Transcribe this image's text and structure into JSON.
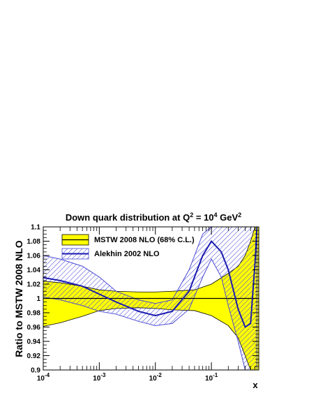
{
  "chart_data": {
    "type": "line",
    "title_main": "Down quark distribution at Q",
    "title_exp1": "2",
    "title_mid": " = 10",
    "title_exp2": "4",
    "title_end": " GeV",
    "title_exp3": "2",
    "xlabel": "x",
    "ylabel": "Ratio to MSTW 2008 NLO",
    "x_scale": "log",
    "xlim": [
      0.0001,
      0.7
    ],
    "ylim": [
      0.9,
      1.1
    ],
    "x_ticks": [
      {
        "base": "10",
        "exp": "-4",
        "value": 0.0001
      },
      {
        "base": "10",
        "exp": "-3",
        "value": 0.001
      },
      {
        "base": "10",
        "exp": "-2",
        "value": 0.01
      },
      {
        "base": "10",
        "exp": "-1",
        "value": 0.1
      }
    ],
    "y_ticks": [
      "0.9",
      "0.92",
      "0.94",
      "0.96",
      "0.98",
      "1",
      "1.02",
      "1.04",
      "1.06",
      "1.08",
      "1.1"
    ],
    "legend_position": "top-left",
    "colors": {
      "mstw_band": "#ffff00",
      "mstw_line": "#000000",
      "alekhin_band": "#4b4bd6",
      "alekhin_line": "#1a1ab0"
    },
    "series": [
      {
        "name": "MSTW 2008 NLO (68% C.L.)",
        "x": [
          0.0001,
          0.0002,
          0.0005,
          0.001,
          0.002,
          0.005,
          0.01,
          0.02,
          0.05,
          0.1,
          0.2,
          0.3,
          0.4,
          0.5,
          0.6,
          0.7
        ],
        "central": [
          1,
          1,
          1,
          1,
          1,
          1,
          1,
          1,
          1,
          1,
          1,
          1,
          1,
          1,
          1,
          1
        ],
        "upper": [
          1.024,
          1.022,
          1.017,
          1.012,
          1.01,
          1.009,
          1.009,
          1.01,
          1.012,
          1.02,
          1.035,
          1.045,
          1.06,
          1.08,
          1.1,
          1.1
        ],
        "lower": [
          0.961,
          0.966,
          0.975,
          0.983,
          0.986,
          0.987,
          0.986,
          0.984,
          0.983,
          0.976,
          0.962,
          0.945,
          0.92,
          0.9,
          0.9,
          0.9
        ]
      },
      {
        "name": "Alekhin 2002 NLO",
        "x": [
          0.0001,
          0.0002,
          0.0005,
          0.001,
          0.002,
          0.005,
          0.01,
          0.02,
          0.04,
          0.07,
          0.1,
          0.15,
          0.2,
          0.3,
          0.4,
          0.5,
          0.6,
          0.65
        ],
        "central": [
          1.029,
          1.025,
          1.017,
          1.006,
          0.995,
          0.982,
          0.976,
          0.982,
          1.01,
          1.06,
          1.08,
          1.065,
          1.04,
          0.985,
          0.96,
          0.965,
          1.05,
          1.1
        ],
        "upper": [
          1.06,
          1.055,
          1.045,
          1.03,
          1.01,
          0.998,
          0.993,
          0.998,
          1.04,
          1.09,
          1.1,
          1.1,
          1.1,
          1.1,
          1.1,
          1.1,
          1.1,
          1.1
        ],
        "lower": [
          1.002,
          0.998,
          0.99,
          0.982,
          0.978,
          0.968,
          0.962,
          0.965,
          0.985,
          1.03,
          1.055,
          1.03,
          0.99,
          0.94,
          0.9,
          0.9,
          0.9,
          0.9
        ]
      }
    ]
  }
}
